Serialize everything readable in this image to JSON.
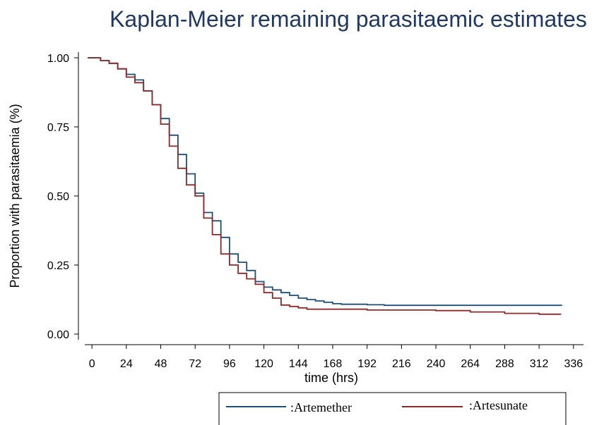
{
  "chart_data": {
    "type": "line",
    "step": true,
    "title": "Kaplan-Meier remaining parasitaemic estimates",
    "xlabel": "time (hrs)",
    "ylabel": "Proportion with parasitaemia (%)",
    "xlim": [
      -5,
      343
    ],
    "ylim": [
      0,
      1.0
    ],
    "xticks": [
      0,
      24,
      48,
      72,
      96,
      120,
      144,
      168,
      192,
      216,
      240,
      264,
      288,
      312,
      336
    ],
    "yticks": [
      0.0,
      0.25,
      0.5,
      0.75,
      1.0
    ],
    "ytick_labels": [
      "0.00",
      "0.25",
      "0.50",
      "0.75",
      "1.00"
    ],
    "grid": false,
    "legend_position": "bottom",
    "series": [
      {
        "name": ":Artemether",
        "color": "#1f4e79",
        "x": [
          -3,
          6,
          12,
          18,
          24,
          30,
          36,
          42,
          48,
          54,
          60,
          66,
          72,
          78,
          84,
          90,
          96,
          102,
          108,
          114,
          120,
          126,
          132,
          138,
          144,
          150,
          156,
          162,
          168,
          174,
          180,
          192,
          204,
          216,
          240,
          264,
          288,
          312,
          328
        ],
        "y": [
          1.0,
          0.99,
          0.98,
          0.96,
          0.94,
          0.92,
          0.88,
          0.83,
          0.78,
          0.72,
          0.65,
          0.58,
          0.51,
          0.44,
          0.41,
          0.35,
          0.29,
          0.26,
          0.23,
          0.19,
          0.17,
          0.16,
          0.15,
          0.14,
          0.13,
          0.125,
          0.12,
          0.115,
          0.11,
          0.108,
          0.108,
          0.106,
          0.104,
          0.104,
          0.104,
          0.104,
          0.104,
          0.104,
          0.104
        ]
      },
      {
        "name": ":Artesunate",
        "color": "#8b2a2a",
        "x": [
          -3,
          6,
          12,
          18,
          24,
          30,
          36,
          42,
          48,
          54,
          60,
          66,
          72,
          78,
          84,
          90,
          96,
          102,
          108,
          114,
          120,
          126,
          132,
          138,
          144,
          150,
          168,
          192,
          216,
          240,
          264,
          288,
          312,
          327
        ],
        "y": [
          1.0,
          0.99,
          0.98,
          0.96,
          0.93,
          0.91,
          0.88,
          0.83,
          0.76,
          0.68,
          0.6,
          0.54,
          0.5,
          0.42,
          0.36,
          0.29,
          0.25,
          0.22,
          0.2,
          0.18,
          0.15,
          0.13,
          0.105,
          0.1,
          0.095,
          0.09,
          0.09,
          0.087,
          0.087,
          0.085,
          0.08,
          0.075,
          0.072,
          0.07
        ]
      }
    ]
  }
}
